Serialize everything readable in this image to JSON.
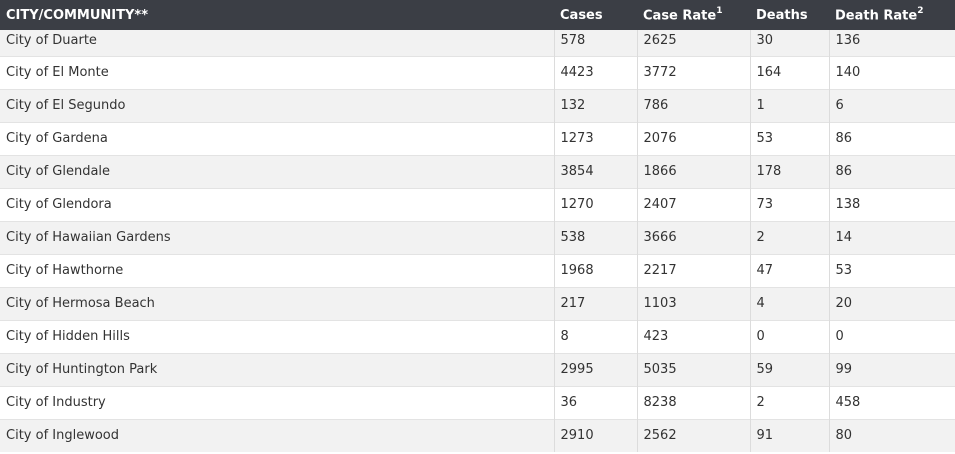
{
  "table": {
    "headers": [
      {
        "label": "CITY/COMMUNITY**",
        "sup": ""
      },
      {
        "label": "Cases",
        "sup": ""
      },
      {
        "label": "Case Rate",
        "sup": "1"
      },
      {
        "label": "Deaths",
        "sup": ""
      },
      {
        "label": "Death Rate",
        "sup": "2"
      }
    ],
    "rows": [
      [
        "City of Duarte",
        "578",
        "2625",
        "30",
        "136"
      ],
      [
        "City of El Monte",
        "4423",
        "3772",
        "164",
        "140"
      ],
      [
        "City of El Segundo",
        "132",
        "786",
        "1",
        "6"
      ],
      [
        "City of Gardena",
        "1273",
        "2076",
        "53",
        "86"
      ],
      [
        "City of Glendale",
        "3854",
        "1866",
        "178",
        "86"
      ],
      [
        "City of Glendora",
        "1270",
        "2407",
        "73",
        "138"
      ],
      [
        "City of Hawaiian Gardens",
        "538",
        "3666",
        "2",
        "14"
      ],
      [
        "City of Hawthorne",
        "1968",
        "2217",
        "47",
        "53"
      ],
      [
        "City of Hermosa Beach",
        "217",
        "1103",
        "4",
        "20"
      ],
      [
        "City of Hidden Hills",
        "8",
        "423",
        "0",
        "0"
      ],
      [
        "City of Huntington Park",
        "2995",
        "5035",
        "59",
        "99"
      ],
      [
        "City of Industry",
        "36",
        "8238",
        "2",
        "458"
      ],
      [
        "City of Inglewood",
        "2910",
        "2562",
        "91",
        "80"
      ]
    ]
  }
}
